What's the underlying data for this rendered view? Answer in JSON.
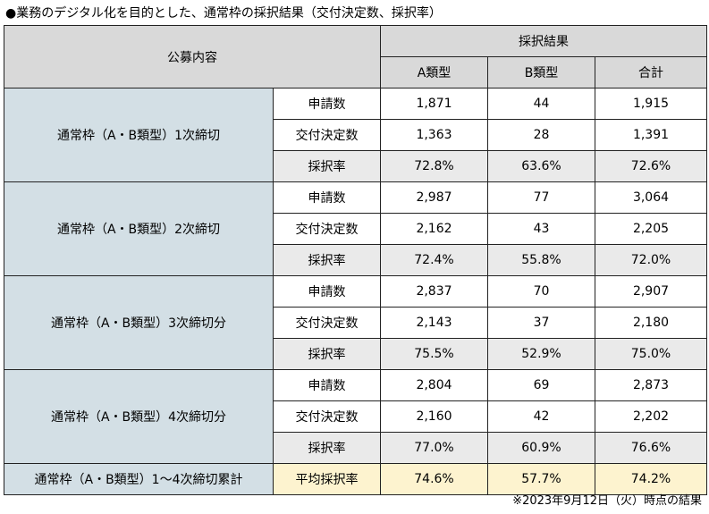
{
  "title": "●業務のデジタル化を目的とした、通常枠の採択結果（交付決定数、採択率）",
  "header": {
    "category_label": "公募内容",
    "results_label": "採択結果",
    "columns": [
      "A類型",
      "B類型",
      "合計"
    ]
  },
  "groups": [
    {
      "name": "通常枠（A・B類型）1次締切",
      "rows": [
        {
          "label": "申請数",
          "values": [
            "1,871",
            "44",
            "1,915"
          ]
        },
        {
          "label": "交付決定数",
          "values": [
            "1,363",
            "28",
            "1,391"
          ]
        },
        {
          "label": "採択率",
          "values": [
            "72.8%",
            "63.6%",
            "72.6%"
          ]
        }
      ]
    },
    {
      "name": "通常枠（A・B類型）2次締切",
      "rows": [
        {
          "label": "申請数",
          "values": [
            "2,987",
            "77",
            "3,064"
          ]
        },
        {
          "label": "交付決定数",
          "values": [
            "2,162",
            "43",
            "2,205"
          ]
        },
        {
          "label": "採択率",
          "values": [
            "72.4%",
            "55.8%",
            "72.0%"
          ]
        }
      ]
    },
    {
      "name": "通常枠（A・B類型）3次締切分",
      "rows": [
        {
          "label": "申請数",
          "values": [
            "2,837",
            "70",
            "2,907"
          ]
        },
        {
          "label": "交付決定数",
          "values": [
            "2,143",
            "37",
            "2,180"
          ]
        },
        {
          "label": "採択率",
          "values": [
            "75.5%",
            "52.9%",
            "75.0%"
          ]
        }
      ]
    },
    {
      "name": "通常枠（A・B類型）4次締切分",
      "rows": [
        {
          "label": "申請数",
          "values": [
            "2,804",
            "69",
            "2,873"
          ]
        },
        {
          "label": "交付決定数",
          "values": [
            "2,160",
            "42",
            "2,202"
          ]
        },
        {
          "label": "採択率",
          "values": [
            "77.0%",
            "60.9%",
            "76.6%"
          ]
        }
      ]
    }
  ],
  "summary": {
    "name": "通常枠（A・B類型）1〜4次締切累計",
    "label": "平均採択率",
    "values": [
      "74.6%",
      "57.7%",
      "74.2%"
    ]
  },
  "colors": {
    "header_gray": "#d9d9d9",
    "category_blue": "#d3dfe5",
    "rate_gray": "#eaeaea",
    "summary_yellow": "#fdf3cf"
  },
  "footnote": "※2023年9月12日（火）時点の結果"
}
